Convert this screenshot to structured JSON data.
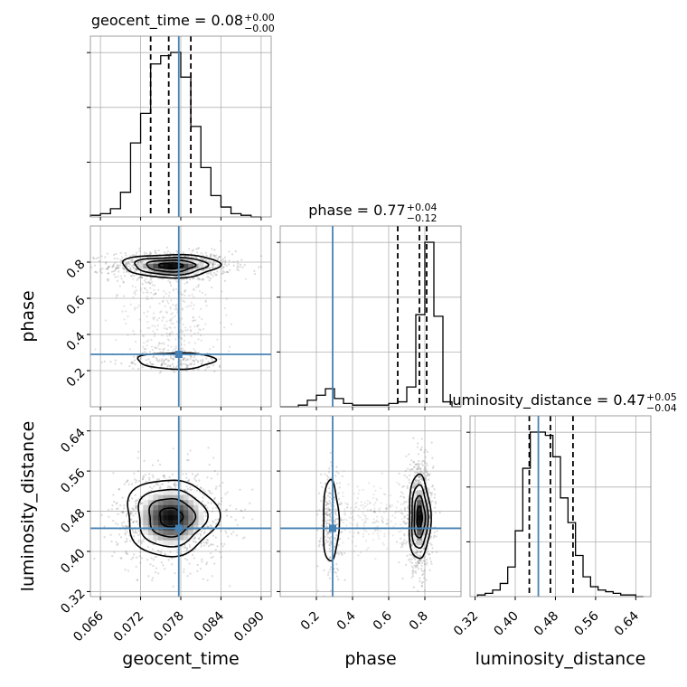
{
  "chart_data": {
    "type": "corner",
    "parameters": [
      "geocent_time",
      "phase",
      "luminosity_distance"
    ],
    "axis_labels": {
      "geocent_time": "geocent_time",
      "phase": "phase",
      "luminosity_distance": "luminosity_distance"
    },
    "ranges": {
      "geocent_time": [
        0.0645,
        0.0915
      ],
      "phase": [
        0.0,
        1.0
      ],
      "luminosity_distance": [
        0.31,
        0.67
      ]
    },
    "ticks": {
      "geocent_time": [
        0.066,
        0.072,
        0.078,
        0.084,
        0.09
      ],
      "phase": [
        0.2,
        0.4,
        0.6,
        0.8
      ],
      "luminosity_distance": [
        0.32,
        0.4,
        0.48,
        0.56,
        0.64
      ]
    },
    "tick_labels": {
      "geocent_time": [
        "0.066",
        "0.072",
        "0.078",
        "0.084",
        "0.090"
      ],
      "phase": [
        "0.2",
        "0.4",
        "0.6",
        "0.8"
      ],
      "luminosity_distance": [
        "0.32",
        "0.40",
        "0.48",
        "0.56",
        "0.64"
      ]
    },
    "truths": {
      "geocent_time": 0.0777,
      "phase": 0.29,
      "luminosity_distance": 0.446
    },
    "titles": [
      {
        "param": "geocent_time",
        "main": "geocent_time = 0.08",
        "upper": "+0.00",
        "lower": "−0.00"
      },
      {
        "param": "phase",
        "main": "phase = 0.77",
        "upper": "+0.04",
        "lower": "−0.12"
      },
      {
        "param": "luminosity_distance",
        "main": "luminosity_distance = 0.47",
        "upper": "+0.05",
        "lower": "−0.04"
      }
    ],
    "quantile_lines": {
      "geocent_time": [
        0.0735,
        0.0762,
        0.0795
      ],
      "phase": [
        0.65,
        0.77,
        0.81
      ],
      "luminosity_distance": [
        0.428,
        0.47,
        0.515
      ]
    },
    "histograms": {
      "geocent_time": {
        "bins": [
          0.0645,
          0.066,
          0.0675,
          0.069,
          0.0705,
          0.072,
          0.0735,
          0.075,
          0.0765,
          0.078,
          0.0795,
          0.081,
          0.0825,
          0.084,
          0.0855,
          0.087,
          0.0885,
          0.09
        ],
        "counts": [
          1,
          2,
          5,
          15,
          45,
          63,
          93,
          98,
          100,
          85,
          55,
          30,
          13,
          6,
          2,
          1,
          0
        ]
      },
      "phase": {
        "bins": [
          0.0,
          0.05,
          0.1,
          0.15,
          0.2,
          0.25,
          0.3,
          0.35,
          0.4,
          0.45,
          0.5,
          0.55,
          0.6,
          0.65,
          0.7,
          0.75,
          0.8,
          0.85,
          0.9,
          0.95,
          1.0
        ],
        "counts": [
          0,
          0,
          1,
          4,
          7,
          11,
          5,
          2,
          1,
          1,
          1,
          1,
          2,
          3,
          12,
          56,
          100,
          55,
          3,
          0
        ]
      },
      "luminosity_distance": {
        "bins": [
          0.325,
          0.34,
          0.355,
          0.37,
          0.385,
          0.4,
          0.415,
          0.43,
          0.445,
          0.46,
          0.475,
          0.49,
          0.505,
          0.52,
          0.535,
          0.55,
          0.565,
          0.58,
          0.595,
          0.61,
          0.625,
          0.64,
          0.655
        ],
        "counts": [
          1,
          2,
          4,
          8,
          18,
          40,
          78,
          100,
          100,
          98,
          85,
          60,
          45,
          25,
          12,
          6,
          4,
          3,
          2,
          1,
          1,
          0
        ]
      }
    },
    "contour_levels": [
      0.5,
      1.0,
      1.5,
      2.0
    ],
    "posterior_2d": {
      "phase_vs_geocent_time": [
        {
          "x": 0.0765,
          "y": 0.78,
          "sx": 0.0036,
          "sy": 0.032,
          "w": 1.0
        },
        {
          "x": 0.0773,
          "y": 0.255,
          "sx": 0.0032,
          "sy": 0.025,
          "w": 0.12
        }
      ],
      "luminosity_distance_vs_geocent_time": [
        {
          "x": 0.0765,
          "y": 0.468,
          "sx": 0.0034,
          "sy": 0.038,
          "w": 1.0
        }
      ],
      "luminosity_distance_vs_phase": [
        {
          "x": 0.77,
          "y": 0.468,
          "sx": 0.03,
          "sy": 0.042,
          "w": 1.0
        },
        {
          "x": 0.28,
          "y": 0.46,
          "sx": 0.024,
          "sy": 0.045,
          "w": 0.2
        }
      ]
    },
    "colors": {
      "truth": "#4682b4",
      "line": "#000000",
      "grid": "#b0b0b0",
      "points": "#7f7f7f"
    },
    "grid": true
  }
}
